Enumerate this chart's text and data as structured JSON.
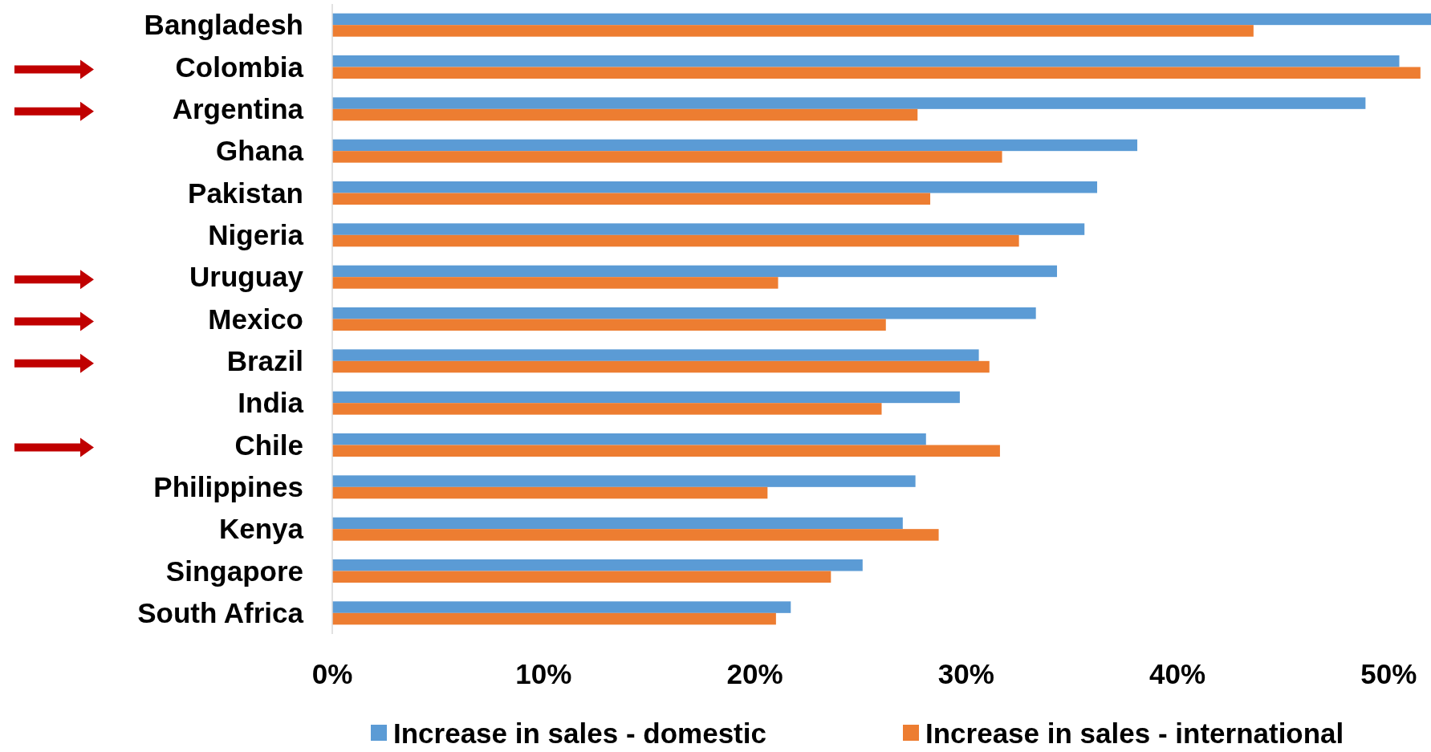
{
  "chart_data": {
    "type": "bar",
    "orientation": "horizontal",
    "categories": [
      "Bangladesh",
      "Colombia",
      "Argentina",
      "Ghana",
      "Pakistan",
      "Nigeria",
      "Uruguay",
      "Mexico",
      "Brazil",
      "India",
      "Chile",
      "Philippines",
      "Kenya",
      "Singapore",
      "South Africa"
    ],
    "series": [
      {
        "name": "Increase in sales - domestic",
        "color": "#5b9bd5",
        "values": [
          52,
          50.5,
          48.9,
          38.1,
          36.2,
          35.6,
          34.3,
          33.3,
          30.6,
          29.7,
          28.1,
          27.6,
          27.0,
          25.1,
          21.7
        ]
      },
      {
        "name": "Increase in sales - international",
        "color": "#ed7d31",
        "values": [
          43.6,
          51.5,
          27.7,
          31.7,
          28.3,
          32.5,
          21.1,
          26.2,
          31.1,
          26.0,
          31.6,
          20.6,
          28.7,
          23.6,
          21.0
        ]
      }
    ],
    "xlim": [
      0,
      52
    ],
    "xticks": [
      {
        "value": 0,
        "label": "0%"
      },
      {
        "value": 10,
        "label": "10%"
      },
      {
        "value": 20,
        "label": "20%"
      },
      {
        "value": 30,
        "label": "30%"
      },
      {
        "value": 40,
        "label": "40%"
      },
      {
        "value": 50,
        "label": "50%"
      }
    ],
    "grid": false,
    "legend": "bottom"
  }
}
